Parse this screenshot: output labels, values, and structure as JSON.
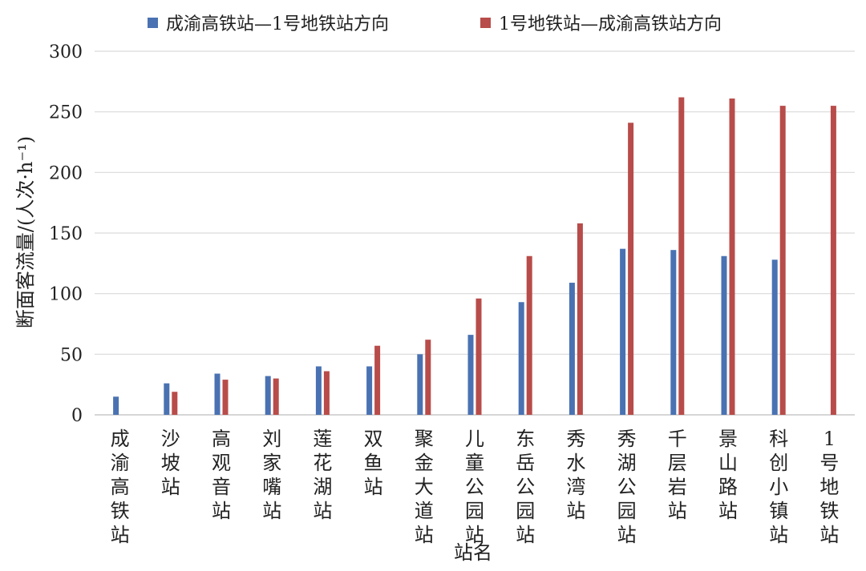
{
  "chart_data": {
    "type": "bar",
    "categories": [
      "成渝高铁站",
      "沙坡站",
      "高观音站",
      "刘家嘴站",
      "莲花湖站",
      "双鱼站",
      "聚金大道站",
      "儿童公园站",
      "东岳公园站",
      "秀水湾站",
      "秀湖公园站",
      "千层岩站",
      "景山路站",
      "科创小镇站",
      "1号地铁站"
    ],
    "series": [
      {
        "name": "成渝高铁站—1号地铁站方向",
        "color": "#4a72b2",
        "values": [
          15,
          26,
          34,
          32,
          40,
          40,
          50,
          66,
          93,
          109,
          137,
          136,
          131,
          128,
          null
        ]
      },
      {
        "name": "1号地铁站—成渝高铁站方向",
        "color": "#b84c4a",
        "values": [
          null,
          19,
          29,
          30,
          36,
          57,
          62,
          96,
          131,
          158,
          241,
          262,
          261,
          255,
          255
        ]
      }
    ],
    "xlabel": "站名",
    "ylabel": "断面客流量/(人次·h⁻¹)",
    "ylim": [
      0,
      300
    ],
    "yticks": [
      0,
      50,
      100,
      150,
      200,
      250,
      300
    ],
    "grid": true,
    "legend": "top-center"
  }
}
